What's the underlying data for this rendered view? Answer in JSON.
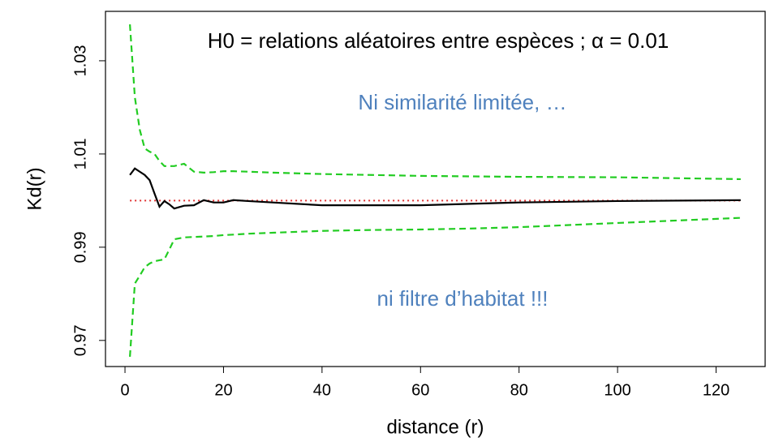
{
  "chart_data": {
    "type": "line",
    "annotations": [
      {
        "text": "H0 = relations aléatoires entre espèces ; α = 0.01",
        "color": "#000000"
      },
      {
        "text": "Ni similarité limitée, …",
        "color": "#4f81bd"
      },
      {
        "text": "ni filtre d’habitat !!!",
        "color": "#4f81bd"
      }
    ],
    "x_label": "distance (r)",
    "y_label": "Kd(r)",
    "x": [
      1,
      2,
      3,
      4,
      5,
      6,
      7,
      8,
      9,
      10,
      12,
      14,
      16,
      18,
      20,
      22,
      25,
      30,
      40,
      50,
      60,
      70,
      80,
      100,
      125
    ],
    "series": [
      {
        "color": "#000000",
        "style": "solid",
        "values": [
          1.0055,
          1.0069,
          1.0062,
          1.0055,
          1.0044,
          1.0015,
          0.9987,
          0.9999,
          0.9992,
          0.9983,
          0.9989,
          0.999,
          1.0001,
          0.9996,
          0.9996,
          1.0001,
          0.9999,
          0.9996,
          0.999,
          0.999,
          0.999,
          0.9993,
          0.9996,
          0.9999,
          1.0001
        ]
      },
      {
        "color": "#22cc22",
        "style": "dashed",
        "values": [
          1.0378,
          1.0222,
          1.0152,
          1.0112,
          1.0105,
          1.01,
          1.0085,
          1.0074,
          1.0074,
          1.0074,
          1.0079,
          1.0062,
          1.006,
          1.0061,
          1.0063,
          1.0063,
          1.0062,
          1.006,
          1.0057,
          1.0055,
          1.0053,
          1.0052,
          1.0051,
          1.005,
          1.0046
        ]
      },
      {
        "color": "#22cc22",
        "style": "dashed",
        "values": [
          0.9665,
          0.9822,
          0.9839,
          0.9857,
          0.9865,
          0.987,
          0.9872,
          0.9874,
          0.9895,
          0.9917,
          0.9921,
          0.9922,
          0.9923,
          0.9924,
          0.9926,
          0.9927,
          0.9929,
          0.9931,
          0.9935,
          0.9937,
          0.9938,
          0.994,
          0.9943,
          0.9952,
          0.9963
        ]
      }
    ],
    "reference_line": {
      "value": 1,
      "color": "#e03030",
      "style": "dotted"
    },
    "xlim": [
      -3.96,
      129.96
    ],
    "ylim": [
      0.9644,
      1.0406
    ],
    "xticks": [
      0,
      20,
      40,
      60,
      80,
      100,
      120
    ],
    "yticks": [
      0.97,
      0.99,
      1.01,
      1.03
    ]
  }
}
